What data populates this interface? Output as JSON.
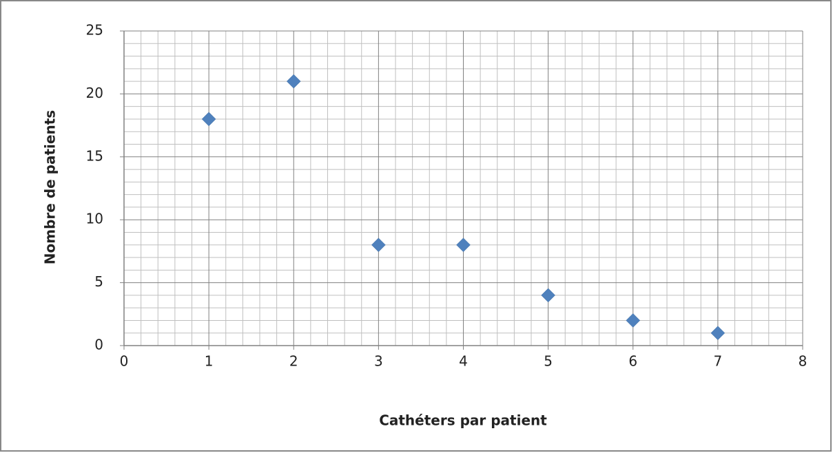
{
  "chart_data": {
    "type": "scatter",
    "xlabel": "Cathéters par patient",
    "ylabel": "Nombre de patients",
    "x": [
      1,
      2,
      3,
      4,
      5,
      6,
      7
    ],
    "values": [
      18,
      21,
      8,
      8,
      4,
      2,
      1
    ],
    "color": "#4f81bd",
    "xlim": [
      0,
      8
    ],
    "xticks": [
      0,
      1,
      2,
      3,
      4,
      5,
      6,
      7,
      8
    ],
    "ylim": [
      0,
      25
    ],
    "yticks": [
      0,
      5,
      10,
      15,
      20,
      25
    ],
    "grid": true,
    "minor_grid": {
      "x": 5,
      "y": 5
    }
  }
}
